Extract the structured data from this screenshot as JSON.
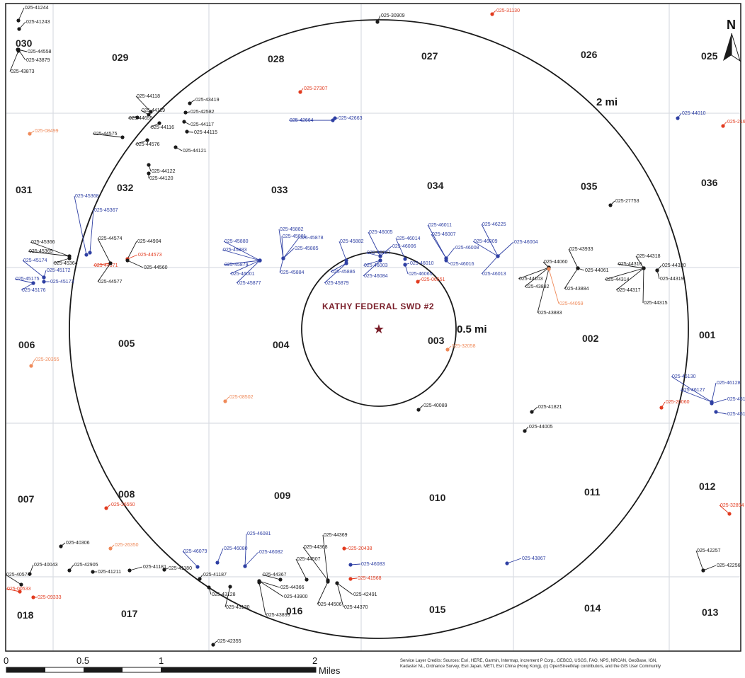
{
  "site_label": "KATHY FEDERAL SWD #2",
  "rings": {
    "inner": "0.5 mi",
    "outer": "2 mi"
  },
  "north": "N",
  "colors": {
    "black": "#1a1a1a",
    "blue": "#2e3fa3",
    "red": "#e23b1f",
    "orange": "#ef8a5a",
    "site": "#7a1f2a",
    "grid": "#d9dde3"
  },
  "sections": [
    "030",
    "029",
    "028",
    "027",
    "026",
    "025",
    "031",
    "032",
    "033",
    "034",
    "035",
    "036",
    "006",
    "005",
    "004",
    "003",
    "002",
    "001",
    "007",
    "008",
    "009",
    "010",
    "011",
    "012",
    "018",
    "017",
    "016",
    "015",
    "014",
    "013"
  ],
  "wells": [
    {
      "id": "025-41244",
      "c": "black"
    },
    {
      "id": "025-41243",
      "c": "black"
    },
    {
      "id": "025-44558",
      "c": "black"
    },
    {
      "id": "025-43879",
      "c": "black"
    },
    {
      "id": "025-43873",
      "c": "black"
    },
    {
      "id": "025-30909",
      "c": "black"
    },
    {
      "id": "025-31130",
      "c": "red"
    },
    {
      "id": "025-27307",
      "c": "red"
    },
    {
      "id": "025-44118",
      "c": "black"
    },
    {
      "id": "025-43419",
      "c": "black"
    },
    {
      "id": "025-44119",
      "c": "black"
    },
    {
      "id": "025-42582",
      "c": "black"
    },
    {
      "id": "025-44655",
      "c": "black"
    },
    {
      "id": "025-44116",
      "c": "black"
    },
    {
      "id": "025-44117",
      "c": "black"
    },
    {
      "id": "025-44115",
      "c": "black"
    },
    {
      "id": "025-44575",
      "c": "black"
    },
    {
      "id": "025-44576",
      "c": "black"
    },
    {
      "id": "025-44121",
      "c": "black"
    },
    {
      "id": "025-44122",
      "c": "black"
    },
    {
      "id": "025-44120",
      "c": "black"
    },
    {
      "id": "025-42664",
      "c": "blue"
    },
    {
      "id": "025-42663",
      "c": "blue"
    },
    {
      "id": "025-44010",
      "c": "blue"
    },
    {
      "id": "025-21665",
      "c": "red"
    },
    {
      "id": "025-08499",
      "c": "orange"
    },
    {
      "id": "025-27753",
      "c": "black"
    },
    {
      "id": "025-45368",
      "c": "blue"
    },
    {
      "id": "025-45367",
      "c": "blue"
    },
    {
      "id": "025-45366",
      "c": "black"
    },
    {
      "id": "025-45365",
      "c": "black"
    },
    {
      "id": "025-45174",
      "c": "blue"
    },
    {
      "id": "025-45175",
      "c": "blue"
    },
    {
      "id": "025-45176",
      "c": "blue"
    },
    {
      "id": "025-45173",
      "c": "blue"
    },
    {
      "id": "025-45172",
      "c": "blue"
    },
    {
      "id": "025-45364",
      "c": "black"
    },
    {
      "id": "025-44574",
      "c": "black"
    },
    {
      "id": "025-44904",
      "c": "black"
    },
    {
      "id": "025-44573",
      "c": "red"
    },
    {
      "id": "025-44571",
      "c": "red"
    },
    {
      "id": "025-44560",
      "c": "black"
    },
    {
      "id": "025-44577",
      "c": "black"
    },
    {
      "id": "025-45880",
      "c": "blue"
    },
    {
      "id": "025-45882",
      "c": "blue"
    },
    {
      "id": "025-45881",
      "c": "blue"
    },
    {
      "id": "025-45878",
      "c": "blue"
    },
    {
      "id": "025-45883",
      "c": "blue"
    },
    {
      "id": "025-45885",
      "c": "blue"
    },
    {
      "id": "025-45879",
      "c": "blue"
    },
    {
      "id": "025-45884",
      "c": "blue"
    },
    {
      "id": "025-46001",
      "c": "blue"
    },
    {
      "id": "025-45877",
      "c": "blue"
    },
    {
      "id": "025-46005",
      "c": "blue"
    },
    {
      "id": "025-46014",
      "c": "blue"
    },
    {
      "id": "025-46011",
      "c": "blue"
    },
    {
      "id": "025-46007",
      "c": "blue"
    },
    {
      "id": "025-46225",
      "c": "blue"
    },
    {
      "id": "025-46009",
      "c": "blue"
    },
    {
      "id": "025-46006",
      "c": "blue"
    },
    {
      "id": "025-46008",
      "c": "blue"
    },
    {
      "id": "025-46004",
      "c": "blue"
    },
    {
      "id": "025-45882b",
      "c": "blue",
      "label": "025-45882"
    },
    {
      "id": "025-46227",
      "c": "blue"
    },
    {
      "id": "025-46010",
      "c": "blue"
    },
    {
      "id": "025-46016",
      "c": "blue"
    },
    {
      "id": "025-45886",
      "c": "blue"
    },
    {
      "id": "025-46003",
      "c": "blue"
    },
    {
      "id": "025-46013",
      "c": "blue"
    },
    {
      "id": "025-46065",
      "c": "blue"
    },
    {
      "id": "025-45879b",
      "c": "blue",
      "label": "025-45879"
    },
    {
      "id": "025-46084",
      "c": "blue"
    },
    {
      "id": "025-06551",
      "c": "red"
    },
    {
      "id": "025-43933",
      "c": "black"
    },
    {
      "id": "025-44060",
      "c": "black"
    },
    {
      "id": "025-44061",
      "c": "black"
    },
    {
      "id": "025-44103",
      "c": "black"
    },
    {
      "id": "025-43882",
      "c": "black"
    },
    {
      "id": "025-43884",
      "c": "black"
    },
    {
      "id": "025-43883",
      "c": "black"
    },
    {
      "id": "025-44059",
      "c": "orange"
    },
    {
      "id": "025-44318",
      "c": "black"
    },
    {
      "id": "025-44316",
      "c": "black"
    },
    {
      "id": "025-44314",
      "c": "black"
    },
    {
      "id": "025-44317",
      "c": "black"
    },
    {
      "id": "025-44315",
      "c": "black"
    },
    {
      "id": "025-44320",
      "c": "black"
    },
    {
      "id": "025-44319",
      "c": "black"
    },
    {
      "id": "025-20355",
      "c": "orange"
    },
    {
      "id": "025-32058",
      "c": "orange"
    },
    {
      "id": "025-08502",
      "c": "orange"
    },
    {
      "id": "025-40089",
      "c": "black"
    },
    {
      "id": "025-41821",
      "c": "black"
    },
    {
      "id": "025-44005",
      "c": "black"
    },
    {
      "id": "025-46130",
      "c": "blue"
    },
    {
      "id": "025-46128",
      "c": "blue"
    },
    {
      "id": "025-46127",
      "c": "blue"
    },
    {
      "id": "025-46131",
      "c": "blue"
    },
    {
      "id": "025-46132",
      "c": "blue"
    },
    {
      "id": "025-20060",
      "c": "red"
    },
    {
      "id": "025-32894",
      "c": "red"
    },
    {
      "id": "025-26550",
      "c": "red"
    },
    {
      "id": "025-40306",
      "c": "black"
    },
    {
      "id": "025-26350",
      "c": "orange"
    },
    {
      "id": "025-40043",
      "c": "black"
    },
    {
      "id": "025-42905",
      "c": "black"
    },
    {
      "id": "025-40574",
      "c": "black"
    },
    {
      "id": "025-41211",
      "c": "black"
    },
    {
      "id": "025-41181",
      "c": "black"
    },
    {
      "id": "025-41180",
      "c": "black"
    },
    {
      "id": "025-41187",
      "c": "black"
    },
    {
      "id": "025-43128",
      "c": "black"
    },
    {
      "id": "025-43130",
      "c": "black"
    },
    {
      "id": "025-00533",
      "c": "red"
    },
    {
      "id": "025-09333",
      "c": "red"
    },
    {
      "id": "025-46079",
      "c": "blue"
    },
    {
      "id": "025-46080",
      "c": "blue"
    },
    {
      "id": "025-46081",
      "c": "blue"
    },
    {
      "id": "025-46082",
      "c": "blue"
    },
    {
      "id": "025-44369",
      "c": "black"
    },
    {
      "id": "025-44368",
      "c": "black"
    },
    {
      "id": "025-44507",
      "c": "black"
    },
    {
      "id": "025-44367",
      "c": "black"
    },
    {
      "id": "025-44366",
      "c": "black"
    },
    {
      "id": "025-43900",
      "c": "black"
    },
    {
      "id": "025-43899",
      "c": "black"
    },
    {
      "id": "025-44506",
      "c": "black"
    },
    {
      "id": "025-44370",
      "c": "black"
    },
    {
      "id": "025-42491",
      "c": "black"
    },
    {
      "id": "025-20438",
      "c": "red"
    },
    {
      "id": "025-46083",
      "c": "blue"
    },
    {
      "id": "025-41568",
      "c": "red"
    },
    {
      "id": "025-43867",
      "c": "blue"
    },
    {
      "id": "025-42257",
      "c": "black"
    },
    {
      "id": "025-42256",
      "c": "black"
    },
    {
      "id": "025-42355",
      "c": "black"
    }
  ],
  "scale": {
    "ticks": [
      "0",
      "0.5",
      "1",
      "2"
    ],
    "unit": "Miles"
  },
  "credits": [
    "Service Layer Credits: Sources: Esri, HERE, Garmin, Intermap, increment P Corp., GEBCO, USGS, FAO, NPS, NRCAN, GeoBase, IGN,",
    "Kadaster NL, Ordnance Survey, Esri Japan, METI, Esri China (Hong Kong), (c) OpenStreetMap contributors, and the GIS User Community"
  ]
}
